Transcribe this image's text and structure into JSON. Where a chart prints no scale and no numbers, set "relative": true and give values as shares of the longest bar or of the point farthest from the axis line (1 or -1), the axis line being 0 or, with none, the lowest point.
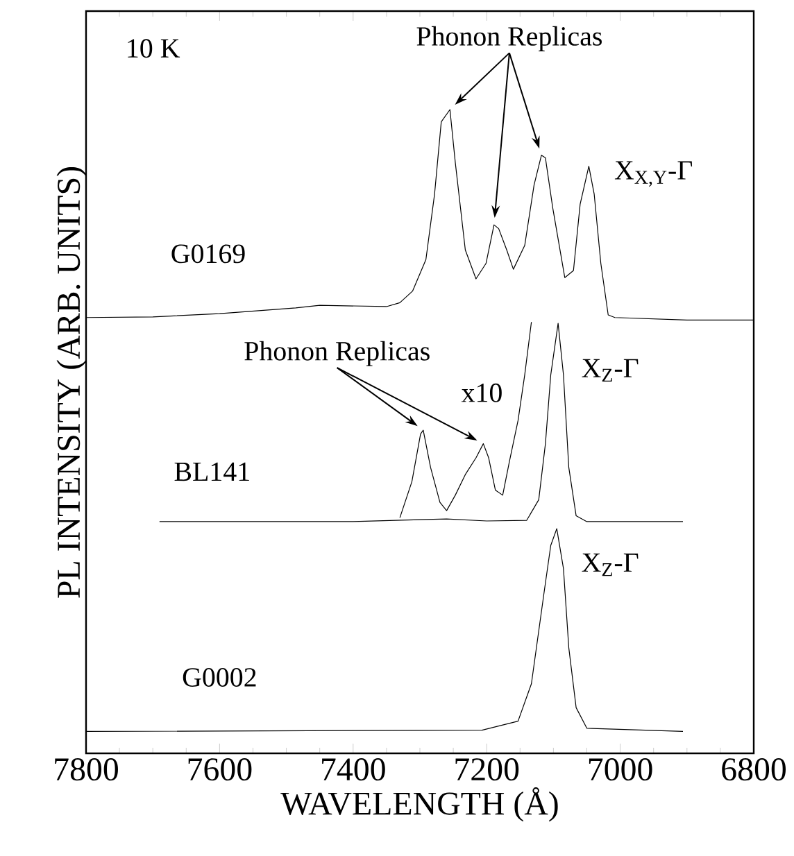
{
  "chart_data": {
    "type": "line",
    "relative": true,
    "marker": "none",
    "xlabel": "WAVELENGTH (Å)",
    "ylabel": "PL INTENSITY (ARB. UNITS)",
    "xlim": [
      7800,
      6800
    ],
    "xticks": [
      7800,
      7600,
      7400,
      7200,
      7000,
      6800
    ],
    "series": [
      {
        "name": "G0169",
        "color": "#000000",
        "x": [
          7800,
          7700,
          7600,
          7486,
          7450,
          7350,
          7330,
          7311,
          7291,
          7278,
          7268,
          7255,
          7247,
          7232,
          7216,
          7201,
          7189,
          7182,
          7170,
          7160,
          7143,
          7129,
          7118,
          7112,
          7101,
          7083,
          7070,
          7060,
          7047,
          7039,
          7029,
          7018,
          7008,
          6900,
          6800
        ],
        "values": [
          0.677,
          0.678,
          0.683,
          0.692,
          0.696,
          0.694,
          0.7,
          0.718,
          0.767,
          0.869,
          0.981,
          1.0,
          0.918,
          0.782,
          0.737,
          0.761,
          0.821,
          0.815,
          0.782,
          0.752,
          0.789,
          0.883,
          0.929,
          0.925,
          0.847,
          0.739,
          0.75,
          0.853,
          0.912,
          0.869,
          0.761,
          0.681,
          0.677,
          0.673,
          0.673
        ]
      },
      {
        "name": "BL141",
        "color": "#000000",
        "x": [
          7690,
          7400,
          7300,
          7260,
          7200,
          7140,
          7122,
          7112,
          7104,
          7093,
          7085,
          7077,
          7066,
          7050,
          6906
        ],
        "values": [
          0.36,
          0.36,
          0.363,
          0.364,
          0.361,
          0.362,
          0.394,
          0.481,
          0.588,
          0.668,
          0.588,
          0.444,
          0.369,
          0.36,
          0.36
        ]
      },
      {
        "color": "#000000",
        "x": [
          7330,
          7312,
          7299,
          7295,
          7284,
          7270,
          7260,
          7247,
          7232,
          7216,
          7205,
          7197,
          7187,
          7176,
          7166,
          7153,
          7143,
          7133
        ],
        "values": [
          0.366,
          0.422,
          0.496,
          0.502,
          0.444,
          0.39,
          0.377,
          0.401,
          0.433,
          0.459,
          0.481,
          0.459,
          0.409,
          0.401,
          0.453,
          0.517,
          0.588,
          0.67
        ]
      },
      {
        "name": "G0002",
        "color": "#000000",
        "x": [
          7800,
          7207,
          7153,
          7133,
          7114,
          7104,
          7095,
          7085,
          7077,
          7066,
          7050,
          6906
        ],
        "values": [
          0.034,
          0.036,
          0.05,
          0.108,
          0.25,
          0.323,
          0.349,
          0.287,
          0.164,
          0.071,
          0.039,
          0.034
        ]
      }
    ],
    "annotations": [
      "10 K",
      "Phonon Replicas",
      "X$_{X,Y}$-Γ",
      "Phonon Replicas",
      "x10",
      "X$_{Z}$-Γ",
      "X$_{Z}$-Γ"
    ]
  }
}
